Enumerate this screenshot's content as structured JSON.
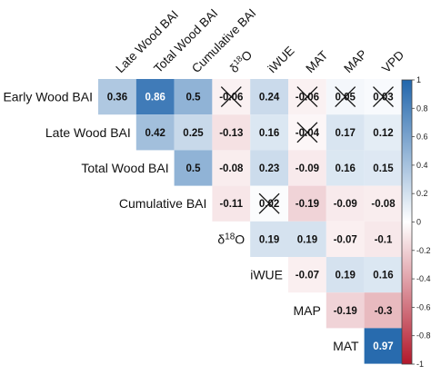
{
  "chart_data": {
    "type": "heatmap",
    "title": "",
    "xlabel": "",
    "ylabel": "",
    "columns": [
      "Late Wood BAI",
      "Total Wood BAI",
      "Cumulative BAI",
      "δ18O",
      "iWUE",
      "MAT",
      "MAP",
      "VPD"
    ],
    "rows": [
      "Early Wood BAI",
      "Late Wood BAI",
      "Total Wood BAI",
      "Cumulative BAI",
      "δ18O",
      "iWUE",
      "MAP",
      "MAT"
    ],
    "matrix": [
      [
        0.36,
        0.86,
        0.5,
        -0.06,
        0.24,
        -0.06,
        0.05,
        0.03
      ],
      [
        null,
        0.42,
        0.25,
        -0.13,
        0.16,
        -0.04,
        0.17,
        0.12
      ],
      [
        null,
        null,
        0.5,
        -0.08,
        0.23,
        -0.09,
        0.16,
        0.15
      ],
      [
        null,
        null,
        null,
        -0.11,
        0.02,
        -0.19,
        -0.09,
        -0.08
      ],
      [
        null,
        null,
        null,
        null,
        0.19,
        0.19,
        -0.07,
        -0.1
      ],
      [
        null,
        null,
        null,
        null,
        null,
        -0.07,
        0.19,
        0.16
      ],
      [
        null,
        null,
        null,
        null,
        null,
        null,
        -0.19,
        -0.3
      ],
      [
        null,
        null,
        null,
        null,
        null,
        null,
        null,
        0.97
      ]
    ],
    "crossed_out": [
      [
        0,
        3
      ],
      [
        0,
        5
      ],
      [
        0,
        6
      ],
      [
        0,
        7
      ],
      [
        1,
        5
      ],
      [
        3,
        4
      ]
    ],
    "colorbar": {
      "range": [
        -1,
        1
      ],
      "ticks": [
        1,
        0.8,
        0.6,
        0.4,
        0.2,
        0,
        -0.2,
        -0.4,
        -0.6,
        -0.8,
        -1
      ]
    },
    "colors": {
      "negative": "#b2182b",
      "neutral": "#ffffff",
      "positive": "#2166ac"
    },
    "grid": false,
    "legend": "right"
  }
}
